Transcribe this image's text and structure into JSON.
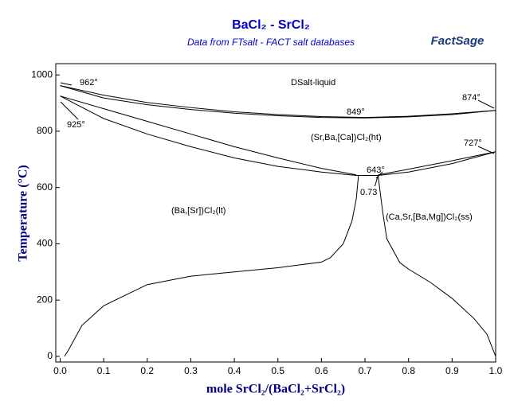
{
  "chart_data": {
    "type": "line",
    "title": "BaCl₂ - SrCl₂",
    "subtitle": "Data from FTsalt - FACT salt databases",
    "logo": "FactSage",
    "x_label": "mole SrCl₂/(BaCl₂+SrCl₂)",
    "y_label": "Temperature (°C)",
    "xlim": [
      -0.01,
      1.0
    ],
    "ylim": [
      -20,
      1040
    ],
    "xticks": [
      {
        "value": 0,
        "label": "0.0"
      },
      0.1,
      0.2,
      0.3,
      0.4,
      0.5,
      0.6,
      0.7,
      0.8,
      0.9,
      {
        "value": 1,
        "label": "1.0"
      }
    ],
    "yticks": [
      0,
      200,
      400,
      600,
      800,
      1000
    ],
    "series": [
      {
        "color": "#000000",
        "x": [
          0,
          0.1,
          0.2,
          0.3,
          0.4,
          0.5,
          0.6,
          0.7,
          0.8,
          0.9,
          1.0
        ],
        "values": [
          962,
          928,
          902,
          884,
          869,
          859,
          852,
          849,
          853,
          862,
          874
        ]
      },
      {
        "color": "#000000",
        "x": [
          0,
          0.1,
          0.2,
          0.3,
          0.4,
          0.5,
          0.6,
          0.7,
          0.8,
          0.9,
          1.0
        ],
        "values": [
          962,
          918,
          894,
          877,
          864,
          855,
          849,
          847,
          851,
          859,
          874
        ]
      },
      {
        "color": "#000000",
        "x": [
          0,
          0.1,
          0.2,
          0.3,
          0.4,
          0.5,
          0.6,
          0.68
        ],
        "values": [
          925,
          880,
          835,
          790,
          745,
          705,
          668,
          645
        ]
      },
      {
        "color": "#000000",
        "x": [
          0,
          0.1,
          0.2,
          0.3,
          0.4,
          0.5,
          0.6,
          0.68
        ],
        "values": [
          925,
          845,
          790,
          745,
          705,
          675,
          655,
          643
        ]
      },
      {
        "color": "#000000",
        "x": [
          0.73,
          0.8,
          0.9,
          1.0
        ],
        "values": [
          645,
          665,
          695,
          727
        ]
      },
      {
        "color": "#000000",
        "x": [
          0.68,
          0.73,
          0.8,
          0.9,
          1.0
        ],
        "values": [
          643,
          643,
          655,
          685,
          727
        ]
      },
      {
        "color": "#000000",
        "x": [
          0.685,
          0.68,
          0.67,
          0.65,
          0.62,
          0.6,
          0.5,
          0.4,
          0.3,
          0.2,
          0.1,
          0.05,
          0.02,
          0.01
        ],
        "values": [
          643,
          560,
          480,
          400,
          350,
          335,
          315,
          300,
          285,
          255,
          180,
          110,
          25,
          0
        ]
      },
      {
        "color": "#000000",
        "x": [
          0.73,
          0.74,
          0.75,
          0.78,
          0.8,
          0.85,
          0.9,
          0.95,
          0.98,
          1.0
        ],
        "values": [
          643,
          520,
          418,
          333,
          310,
          263,
          206,
          135,
          79,
          0
        ]
      }
    ],
    "annotations": [
      "962°",
      "849°",
      "874°",
      "925°",
      "727°",
      "643°",
      "0.73",
      "DSalt-liquid",
      "(Sr,Ba,[Ca])Cl₂(ht)",
      "(Ba,[Sr])Cl₂(lt)",
      "(Ca,Sr,[Ba,Mg])Cl₂(ss)"
    ]
  }
}
